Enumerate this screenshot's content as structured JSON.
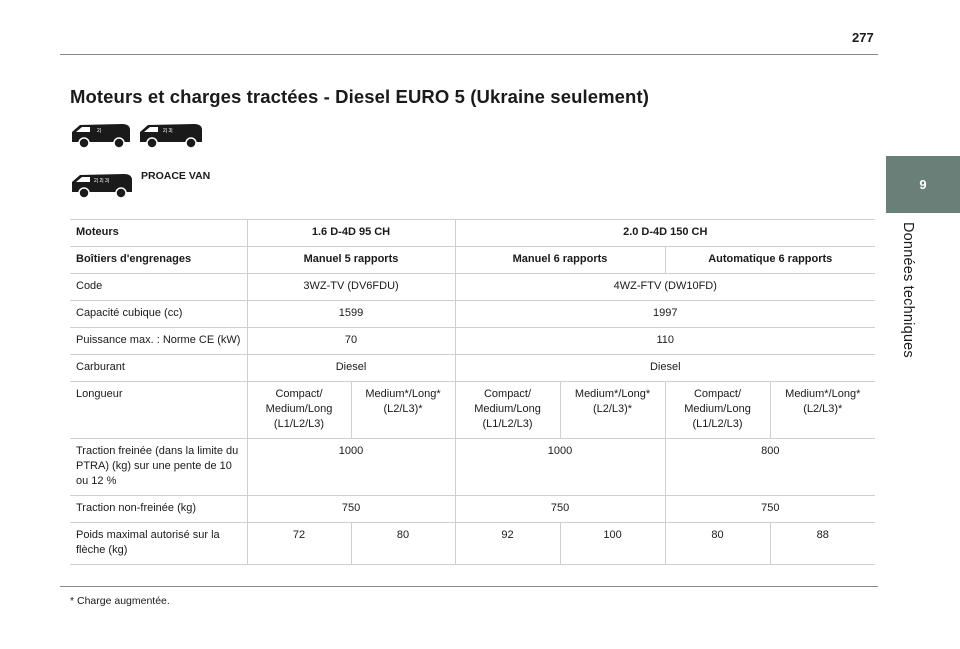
{
  "page": {
    "number": "277",
    "chapter_number": "9",
    "chapter_title": "Données techniques",
    "title": "Moteurs et charges tractées - Diesel EURO 5 (Ukraine seulement)",
    "model_label": "PROACE VAN",
    "footnote": "*  Charge augmentée."
  },
  "table": {
    "rows": [
      {
        "label": "Moteurs",
        "cells": [
          {
            "text": "1.6 D-4D 95 CH",
            "span": 2
          },
          {
            "text": "2.0 D-4D 150 CH",
            "span": 4
          }
        ],
        "header": true
      },
      {
        "label": "Boîtiers d'engrenages",
        "cells": [
          {
            "text": "Manuel 5 rapports",
            "span": 2
          },
          {
            "text": "Manuel 6 rapports",
            "span": 2
          },
          {
            "text": "Automatique 6 rapports",
            "span": 2
          }
        ],
        "header": true
      },
      {
        "label": "Code",
        "cells": [
          {
            "text": "3WZ-TV (DV6FDU)",
            "span": 2
          },
          {
            "text": "4WZ-FTV (DW10FD)",
            "span": 4
          }
        ]
      },
      {
        "label": "Capacité cubique (cc)",
        "cells": [
          {
            "text": "1599",
            "span": 2
          },
          {
            "text": "1997",
            "span": 4
          }
        ]
      },
      {
        "label": "Puissance max. : Norme CE (kW)",
        "cells": [
          {
            "text": "70",
            "span": 2
          },
          {
            "text": "110",
            "span": 4
          }
        ]
      },
      {
        "label": "Carburant",
        "cells": [
          {
            "text": "Diesel",
            "span": 2
          },
          {
            "text": "Diesel",
            "span": 4
          }
        ]
      },
      {
        "label": "Longueur",
        "cells": [
          {
            "text": "Compact/ Medium/Long (L1/L2/L3)",
            "span": 1
          },
          {
            "text": "Medium*/Long* (L2/L3)*",
            "span": 1
          },
          {
            "text": "Compact/ Medium/Long (L1/L2/L3)",
            "span": 1
          },
          {
            "text": "Medium*/Long* (L2/L3)*",
            "span": 1
          },
          {
            "text": "Compact/ Medium/Long (L1/L2/L3)",
            "span": 1
          },
          {
            "text": "Medium*/Long* (L2/L3)*",
            "span": 1
          }
        ]
      },
      {
        "label": "Traction freinée (dans la limite du PTRA) (kg) sur une pente de 10 ou 12 %",
        "cells": [
          {
            "text": "1000",
            "span": 2
          },
          {
            "text": "1000",
            "span": 2
          },
          {
            "text": "800",
            "span": 2
          }
        ]
      },
      {
        "label": "Traction non-freinée (kg)",
        "cells": [
          {
            "text": "750",
            "span": 2
          },
          {
            "text": "750",
            "span": 2
          },
          {
            "text": "750",
            "span": 2
          }
        ]
      },
      {
        "label": "Poids maximal autorisé sur la flèche (kg)",
        "cells": [
          {
            "text": "72",
            "span": 1
          },
          {
            "text": "80",
            "span": 1
          },
          {
            "text": "92",
            "span": 1
          },
          {
            "text": "100",
            "span": 1
          },
          {
            "text": "80",
            "span": 1
          },
          {
            "text": "88",
            "span": 1
          }
        ]
      }
    ]
  },
  "icons": [
    "van-compact-icon",
    "van-medium-icon",
    "van-long-icon"
  ]
}
